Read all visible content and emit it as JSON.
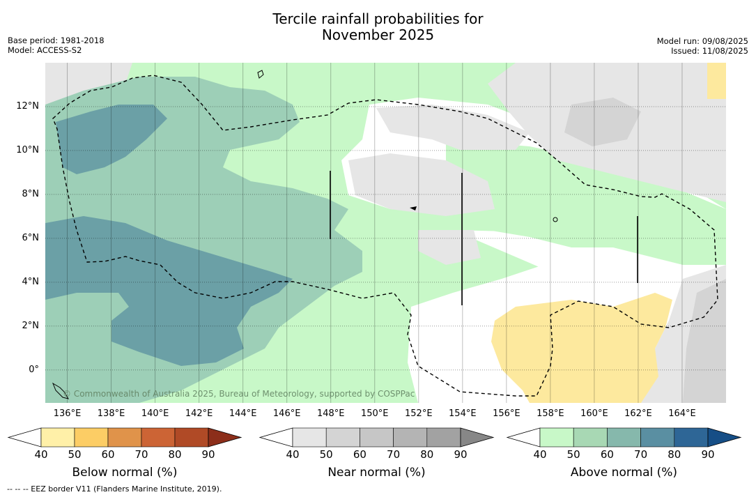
{
  "title_line1": "Tercile rainfall probabilities for",
  "title_line2": "November 2025",
  "meta_left": [
    "Base period: 1981-2018",
    "Model: ACCESS-S2"
  ],
  "meta_right": [
    "Model run: 09/08/2025",
    "Issued: 11/08/2025"
  ],
  "map": {
    "lon_range": [
      135,
      166
    ],
    "lat_range": [
      -1.5,
      14
    ],
    "x_ticks": [
      "136°E",
      "138°E",
      "140°E",
      "142°E",
      "144°E",
      "146°E",
      "148°E",
      "150°E",
      "152°E",
      "154°E",
      "156°E",
      "158°E",
      "160°E",
      "162°E",
      "164°E"
    ],
    "y_ticks": [
      "12°N",
      "10°N",
      "8°N",
      "6°N",
      "4°N",
      "2°N",
      "0°"
    ],
    "copyright": "© Commonwealth of Australia 2025, Bureau of Meteorology, supported by COSPPac"
  },
  "colorbars": [
    {
      "title": "Below normal (%)",
      "ticks": [
        "40",
        "50",
        "60",
        "70",
        "80",
        "90"
      ],
      "colors": [
        "#fff0a8",
        "#fccd65",
        "#e0934a",
        "#cc6435",
        "#b04a26",
        "#8c2e1a"
      ]
    },
    {
      "title": "Near normal (%)",
      "ticks": [
        "40",
        "50",
        "60",
        "70",
        "80",
        "90"
      ],
      "colors": [
        "#e6e6e6",
        "#d4d4d4",
        "#c6c6c6",
        "#b4b4b4",
        "#a2a2a2",
        "#878787"
      ]
    },
    {
      "title": "Above normal (%)",
      "ticks": [
        "40",
        "50",
        "60",
        "70",
        "80",
        "90"
      ],
      "colors": [
        "#c8f8c8",
        "#a8d8b4",
        "#86b8ac",
        "#5a8fa2",
        "#2e6696",
        "#164e86"
      ]
    }
  ],
  "footnote": "-- -- -- EEZ border V11 (Flanders Marine Institute, 2019).",
  "colors": {
    "above_40": "#c8f8c8",
    "above_50": "#9dcfb7",
    "above_60": "#6ba0a6",
    "near_40": "#e6e6e6",
    "near_50": "#d4d4d4",
    "below_40": "#fde99e"
  }
}
